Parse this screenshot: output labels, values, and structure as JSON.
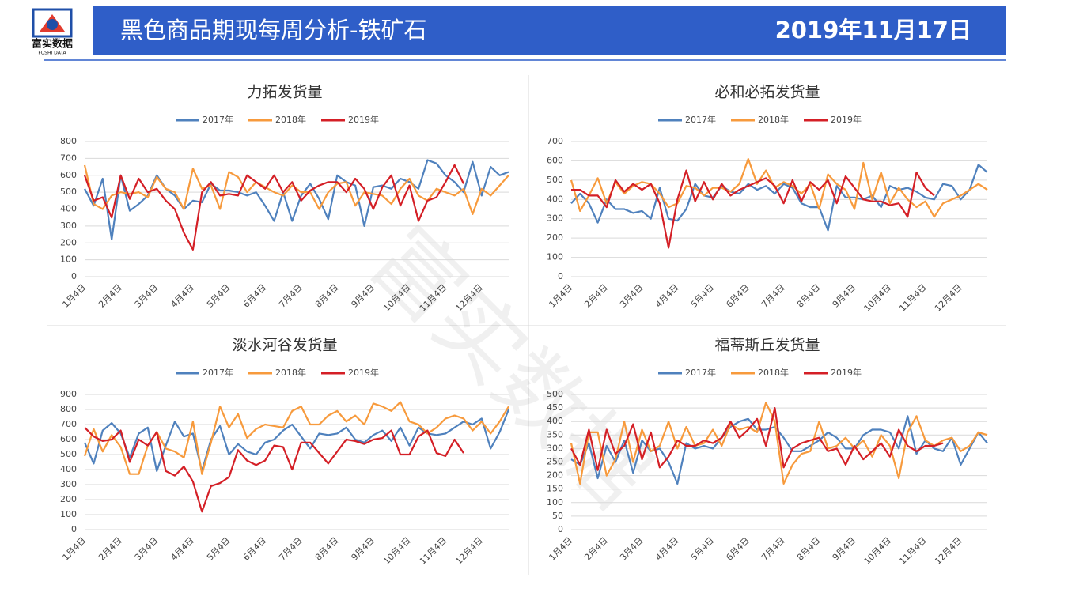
{
  "header": {
    "logo_text": "富实数据",
    "logo_sub": "FUSHI DATA",
    "title": "黑色商品期现每周分析-铁矿石",
    "date": "2019年11月17日"
  },
  "watermark": "富实数据",
  "chart_data": [
    {
      "type": "line",
      "title": "力拓发货量",
      "categories": [
        "1月4日",
        null,
        null,
        null,
        "2月4日",
        null,
        null,
        null,
        "3月4日",
        null,
        null,
        null,
        "4月4日",
        null,
        null,
        null,
        "5月4日",
        null,
        null,
        null,
        "6月4日",
        null,
        null,
        null,
        "7月4日",
        null,
        null,
        null,
        "8月4日",
        null,
        null,
        null,
        "9月4日",
        null,
        null,
        null,
        "10月4日",
        null,
        null,
        null,
        "11月4日",
        null,
        null,
        null,
        "12月4日",
        null,
        null,
        null
      ],
      "ylim": [
        0,
        800
      ],
      "yticks": [
        0,
        100,
        200,
        300,
        400,
        500,
        600,
        700,
        800
      ],
      "grid": true,
      "series": [
        {
          "name": "2017年",
          "color": "#4f81bd",
          "values": [
            520,
            420,
            580,
            220,
            600,
            390,
            430,
            480,
            600,
            520,
            480,
            400,
            450,
            440,
            550,
            510,
            510,
            500,
            480,
            500,
            420,
            330,
            500,
            330,
            480,
            550,
            460,
            340,
            600,
            560,
            540,
            300,
            530,
            540,
            520,
            580,
            560,
            520,
            690,
            670,
            600,
            560,
            500,
            680,
            480,
            650,
            600,
            620
          ]
        },
        {
          "name": "2018年",
          "color": "#f79a3c",
          "values": [
            660,
            430,
            400,
            480,
            500,
            490,
            500,
            470,
            590,
            520,
            500,
            400,
            640,
            520,
            540,
            400,
            620,
            590,
            500,
            560,
            530,
            500,
            480,
            540,
            500,
            500,
            400,
            500,
            550,
            560,
            420,
            500,
            490,
            480,
            430,
            520,
            580,
            480,
            450,
            520,
            500,
            480,
            520,
            370,
            520,
            480,
            540,
            600
          ]
        },
        {
          "name": "2019年",
          "color": "#d41f26",
          "values": [
            600,
            450,
            470,
            350,
            600,
            460,
            580,
            500,
            520,
            450,
            400,
            260,
            160,
            500,
            560,
            480,
            490,
            480,
            600,
            560,
            520,
            600,
            500,
            560,
            450,
            510,
            540,
            560,
            560,
            500,
            580,
            520,
            400,
            530,
            600,
            420,
            540,
            330,
            450,
            470,
            560,
            660,
            550,
            null,
            null,
            null,
            null,
            null
          ]
        }
      ]
    },
    {
      "type": "line",
      "title": "必和必拓发货量",
      "categories": [
        "1月4日",
        null,
        null,
        null,
        "2月4日",
        null,
        null,
        null,
        "3月4日",
        null,
        null,
        null,
        "4月4日",
        null,
        null,
        null,
        "5月4日",
        null,
        null,
        null,
        "6月4日",
        null,
        null,
        null,
        "7月4日",
        null,
        null,
        null,
        "8月4日",
        null,
        null,
        null,
        "9月4日",
        null,
        null,
        null,
        "10月4日",
        null,
        null,
        null,
        "11月4日",
        null,
        null,
        null,
        "12月4日",
        null,
        null,
        null
      ],
      "ylim": [
        0,
        700
      ],
      "yticks": [
        0,
        100,
        200,
        300,
        400,
        500,
        600,
        700
      ],
      "grid": true,
      "series": [
        {
          "name": "2017年",
          "color": "#4f81bd",
          "values": [
            380,
            430,
            380,
            280,
            400,
            350,
            350,
            330,
            340,
            300,
            460,
            300,
            290,
            350,
            480,
            420,
            410,
            470,
            440,
            430,
            480,
            450,
            470,
            430,
            480,
            460,
            380,
            360,
            360,
            240,
            470,
            410,
            410,
            400,
            420,
            360,
            470,
            450,
            460,
            440,
            410,
            400,
            480,
            470,
            400,
            450,
            580,
            540
          ]
        },
        {
          "name": "2018年",
          "color": "#f79a3c",
          "values": [
            500,
            340,
            420,
            510,
            380,
            490,
            430,
            470,
            490,
            480,
            430,
            360,
            380,
            470,
            460,
            420,
            460,
            460,
            440,
            480,
            610,
            480,
            550,
            460,
            490,
            470,
            430,
            480,
            350,
            530,
            480,
            450,
            350,
            590,
            400,
            540,
            380,
            460,
            400,
            360,
            390,
            310,
            380,
            400,
            420,
            450,
            480,
            450
          ]
        },
        {
          "name": "2019年",
          "color": "#d41f26",
          "values": [
            450,
            450,
            420,
            420,
            360,
            500,
            440,
            480,
            450,
            480,
            380,
            150,
            400,
            550,
            390,
            490,
            400,
            480,
            420,
            450,
            470,
            490,
            510,
            470,
            380,
            500,
            390,
            490,
            450,
            500,
            380,
            520,
            460,
            400,
            390,
            390,
            370,
            380,
            310,
            540,
            460,
            420,
            null,
            null,
            null,
            null,
            null,
            null
          ]
        }
      ]
    },
    {
      "type": "line",
      "title": "淡水河谷发货量",
      "categories": [
        "1月4日",
        null,
        null,
        null,
        "2月4日",
        null,
        null,
        null,
        "3月4日",
        null,
        null,
        null,
        "4月4日",
        null,
        null,
        null,
        "5月4日",
        null,
        null,
        null,
        "6月4日",
        null,
        null,
        null,
        "7月4日",
        null,
        null,
        null,
        "8月4日",
        null,
        null,
        null,
        "9月4日",
        null,
        null,
        null,
        "10月4日",
        null,
        null,
        null,
        "11月4日",
        null,
        null,
        null,
        "12月4日",
        null,
        null,
        null
      ],
      "ylim": [
        0,
        900
      ],
      "yticks": [
        0,
        100,
        200,
        300,
        400,
        500,
        600,
        700,
        800,
        900
      ],
      "grid": true,
      "series": [
        {
          "name": "2017年",
          "color": "#4f81bd",
          "values": [
            580,
            440,
            660,
            710,
            640,
            480,
            640,
            680,
            390,
            560,
            720,
            620,
            640,
            390,
            600,
            690,
            500,
            570,
            520,
            500,
            580,
            600,
            660,
            700,
            620,
            540,
            640,
            630,
            640,
            680,
            600,
            580,
            630,
            660,
            590,
            680,
            560,
            680,
            640,
            630,
            640,
            680,
            720,
            700,
            740,
            540,
            650,
            800
          ]
        },
        {
          "name": "2018年",
          "color": "#f79a3c",
          "values": [
            490,
            670,
            520,
            630,
            550,
            370,
            370,
            560,
            650,
            540,
            520,
            480,
            720,
            370,
            580,
            820,
            680,
            770,
            610,
            670,
            700,
            690,
            680,
            790,
            820,
            700,
            700,
            760,
            790,
            720,
            760,
            700,
            840,
            820,
            790,
            850,
            720,
            700,
            640,
            680,
            740,
            760,
            740,
            660,
            720,
            640,
            720,
            820
          ]
        },
        {
          "name": "2019年",
          "color": "#d41f26",
          "values": [
            680,
            620,
            590,
            600,
            660,
            450,
            600,
            560,
            650,
            390,
            360,
            420,
            320,
            120,
            290,
            310,
            350,
            530,
            460,
            430,
            460,
            560,
            550,
            400,
            580,
            580,
            510,
            440,
            520,
            600,
            590,
            570,
            600,
            610,
            660,
            500,
            500,
            620,
            660,
            510,
            490,
            600,
            510,
            null,
            null,
            null,
            null,
            null
          ]
        }
      ]
    },
    {
      "type": "line",
      "title": "福蒂斯丘发货量",
      "categories": [
        "1月4日",
        null,
        null,
        null,
        "2月4日",
        null,
        null,
        null,
        "3月4日",
        null,
        null,
        null,
        "4月4日",
        null,
        null,
        null,
        "5月4日",
        null,
        null,
        null,
        "6月4日",
        null,
        null,
        null,
        "7月4日",
        null,
        null,
        null,
        "8月4日",
        null,
        null,
        null,
        "9月4日",
        null,
        null,
        null,
        "10月4日",
        null,
        null,
        null,
        "11月4日",
        null,
        null,
        null,
        "12月4日",
        null,
        null,
        null
      ],
      "ylim": [
        0,
        500
      ],
      "yticks": [
        0,
        50,
        100,
        150,
        200,
        250,
        300,
        350,
        400,
        450,
        500
      ],
      "grid": true,
      "series": [
        {
          "name": "2017年",
          "color": "#4f81bd",
          "values": [
            260,
            240,
            320,
            190,
            310,
            250,
            330,
            210,
            330,
            290,
            300,
            250,
            170,
            320,
            300,
            310,
            300,
            340,
            380,
            400,
            410,
            370,
            370,
            380,
            340,
            290,
            290,
            310,
            330,
            360,
            340,
            300,
            300,
            350,
            370,
            370,
            360,
            300,
            420,
            280,
            330,
            300,
            290,
            340,
            240,
            300,
            360,
            320
          ]
        },
        {
          "name": "2018年",
          "color": "#f79a3c",
          "values": [
            320,
            170,
            360,
            360,
            200,
            260,
            400,
            250,
            370,
            290,
            310,
            400,
            300,
            380,
            310,
            320,
            370,
            310,
            390,
            370,
            380,
            360,
            470,
            400,
            170,
            240,
            280,
            290,
            400,
            300,
            310,
            340,
            300,
            330,
            270,
            350,
            310,
            190,
            360,
            420,
            330,
            310,
            330,
            340,
            290,
            310,
            360,
            350
          ]
        },
        {
          "name": "2019年",
          "color": "#d41f26",
          "values": [
            300,
            240,
            370,
            220,
            370,
            280,
            310,
            390,
            260,
            360,
            230,
            270,
            330,
            310,
            310,
            330,
            320,
            340,
            400,
            340,
            370,
            410,
            310,
            450,
            230,
            300,
            320,
            330,
            340,
            290,
            300,
            240,
            310,
            260,
            290,
            320,
            270,
            370,
            310,
            290,
            310,
            310,
            320,
            null,
            null,
            null,
            null,
            null
          ]
        }
      ]
    }
  ]
}
